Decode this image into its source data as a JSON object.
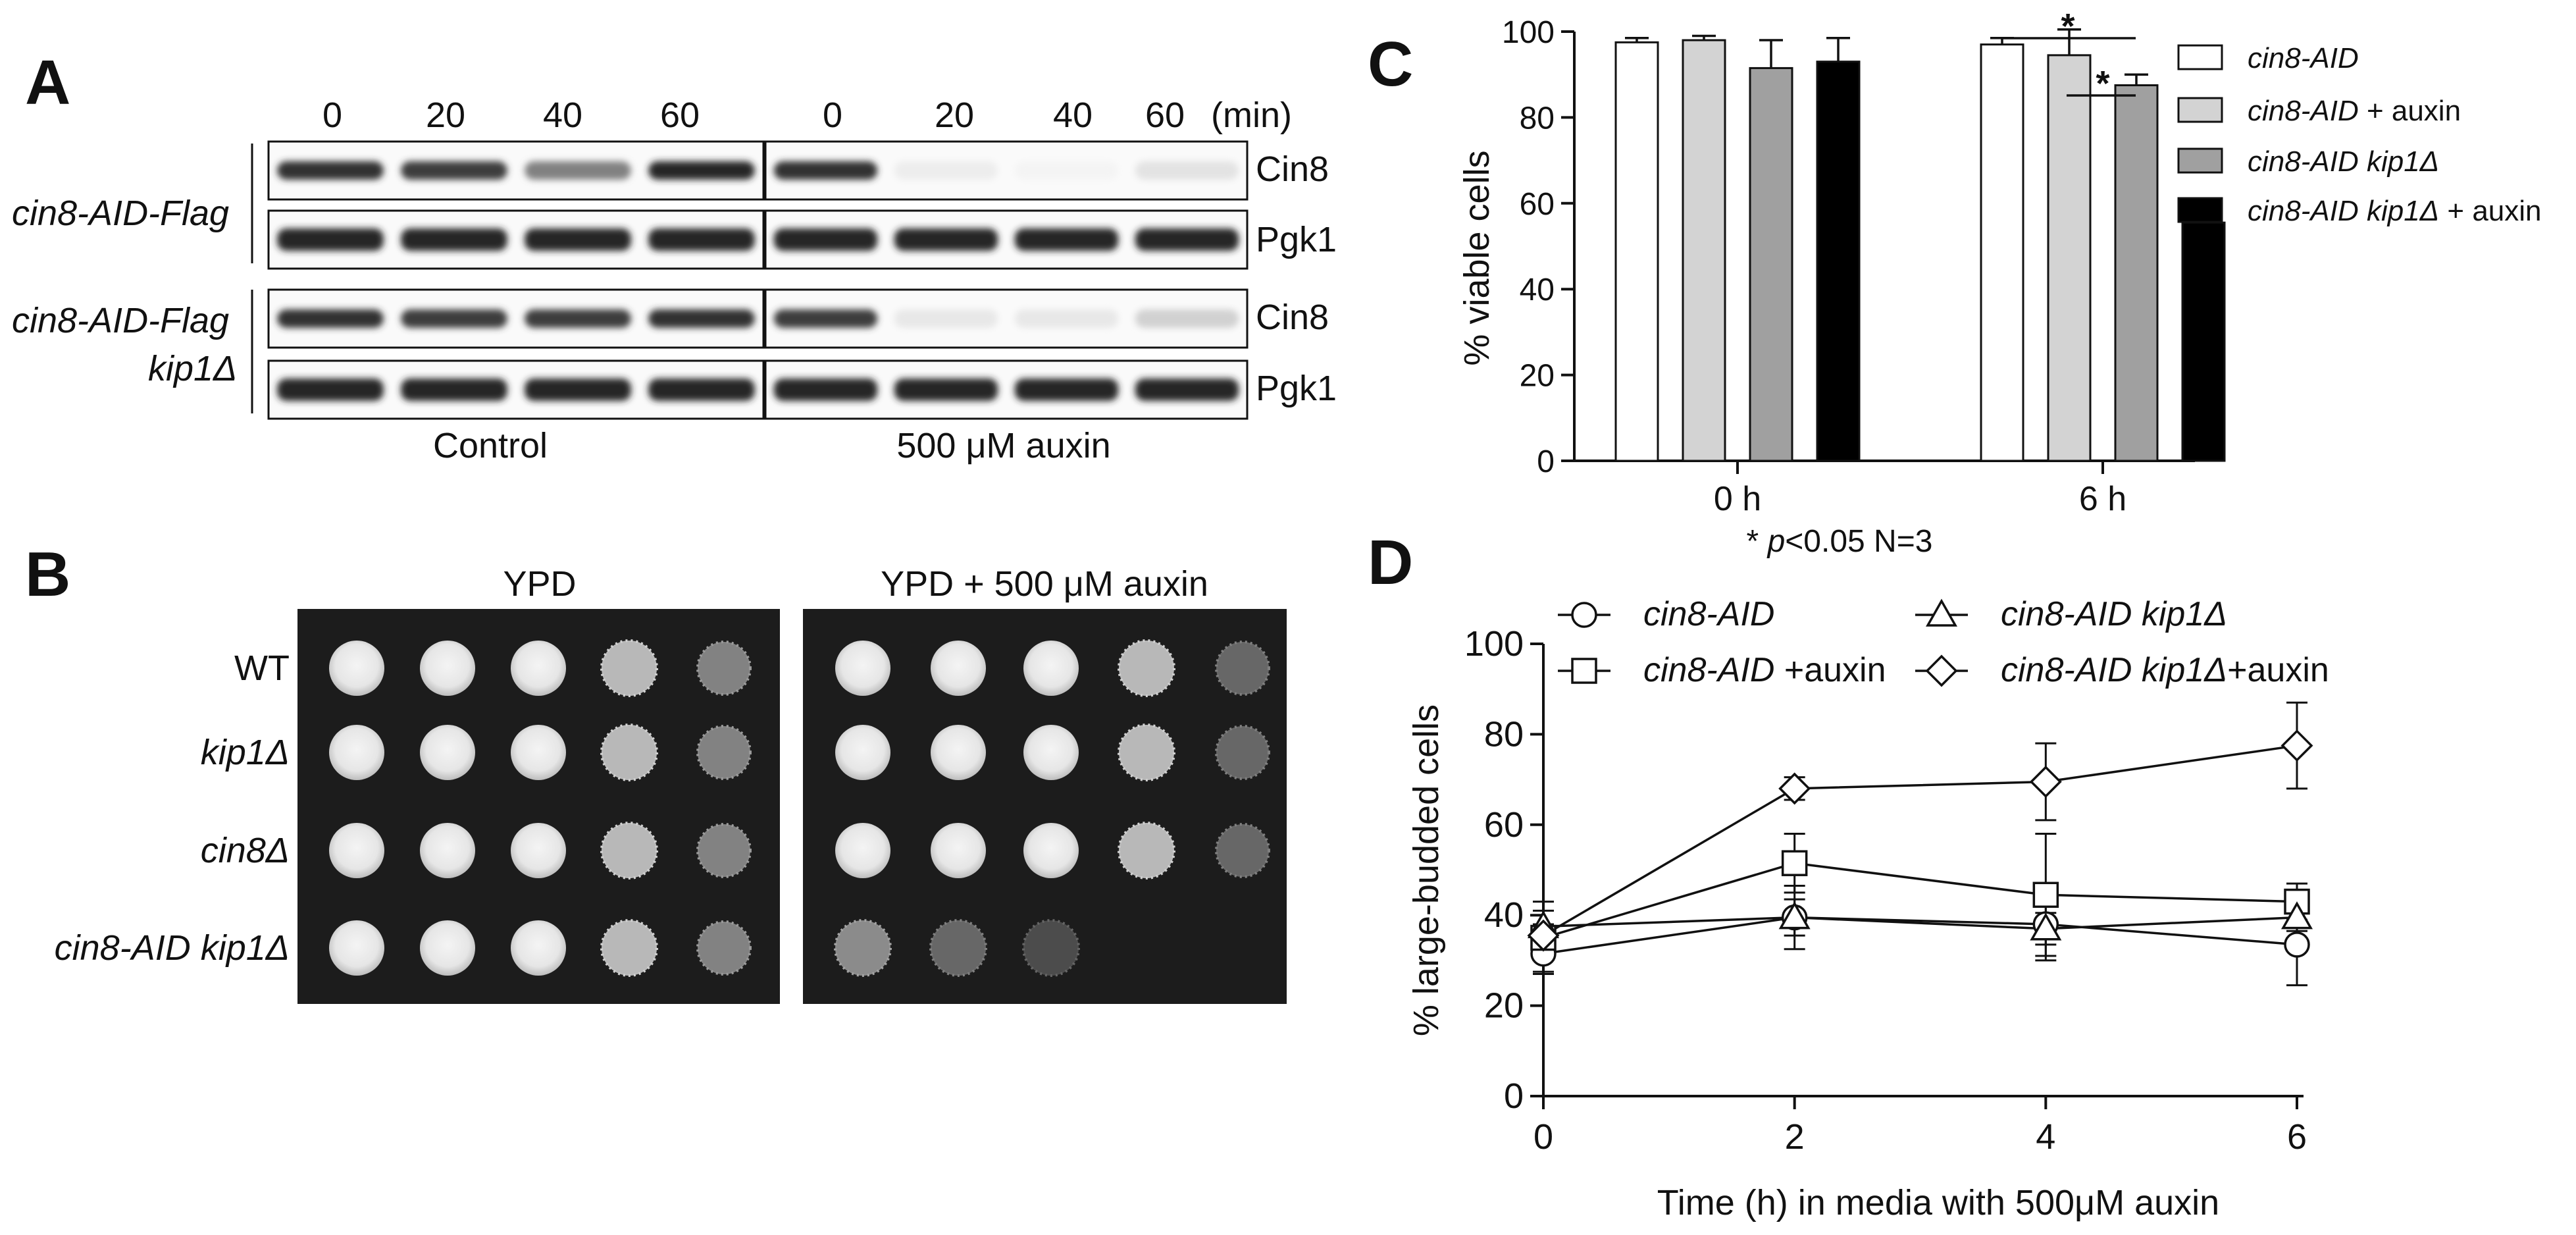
{
  "panel_a": {
    "label": "A",
    "times": [
      "0",
      "20",
      "40",
      "60"
    ],
    "time_unit": "(min)",
    "strains": [
      {
        "name": "cin8-AID-Flag"
      },
      {
        "name": "cin8-AID-Flag",
        "name2": "kip1Δ"
      }
    ],
    "bands": [
      "Cin8",
      "Pgk1"
    ],
    "conditions": [
      "Control",
      "500 μM auxin"
    ],
    "cin8_levels": {
      "control": [
        0.9,
        0.85,
        0.55,
        0.95
      ],
      "auxin": [
        0.9,
        0.08,
        0.05,
        0.12
      ]
    },
    "cin8_levels_kip1": {
      "control": [
        0.9,
        0.85,
        0.85,
        0.9
      ],
      "auxin": [
        0.85,
        0.1,
        0.1,
        0.2
      ]
    }
  },
  "panel_b": {
    "label": "B",
    "media": [
      "YPD",
      "YPD + 500 μM auxin"
    ],
    "rows": [
      {
        "name": "WT",
        "dilutions_ypd": [
          1,
          1,
          1,
          0.8,
          0.5
        ],
        "dilutions_auxin": [
          1,
          1,
          1,
          0.8,
          0.35
        ]
      },
      {
        "name": "kip1Δ",
        "dilutions_ypd": [
          1,
          1,
          1,
          0.8,
          0.5
        ],
        "dilutions_auxin": [
          1,
          1,
          1,
          0.8,
          0.35
        ]
      },
      {
        "name": "cin8Δ",
        "dilutions_ypd": [
          1,
          1,
          1,
          0.8,
          0.5
        ],
        "dilutions_auxin": [
          1,
          1,
          1,
          0.8,
          0.35
        ]
      },
      {
        "name": "cin8-AID kip1Δ",
        "dilutions_ypd": [
          1,
          1,
          1,
          0.8,
          0.5
        ],
        "dilutions_auxin": [
          0.55,
          0.35,
          0.2,
          0,
          0
        ]
      }
    ]
  },
  "panel_c": {
    "label": "C",
    "ylabel": "% viable cells",
    "note_star": "* ",
    "note_p": "p",
    "note_rest": "<0.05 N=3",
    "sig_marks": [
      "*",
      "*"
    ],
    "legend": [
      {
        "italic": "cin8-AID",
        "plain": ""
      },
      {
        "italic": "cin8-AID",
        "plain": " + auxin"
      },
      {
        "italic": "cin8-AID kip1Δ",
        "plain": ""
      },
      {
        "italic": "cin8-AID kip1Δ",
        "plain": " + auxin"
      }
    ]
  },
  "panel_d": {
    "label": "D",
    "ylabel": "% large-budded cells",
    "xlabel": "Time (h) in media with 500μM auxin",
    "legend": [
      {
        "italic": "cin8-AID",
        "plain": ""
      },
      {
        "italic": "cin8-AID",
        "plain": " +auxin"
      },
      {
        "italic": "cin8-AID kip1Δ",
        "plain": ""
      },
      {
        "italic": "cin8-AID kip1Δ",
        "plain": "+auxin"
      }
    ]
  },
  "chart_data": [
    {
      "type": "bar",
      "categories": [
        "0 h",
        "6 h"
      ],
      "ylim": [
        0,
        100
      ],
      "yticks": [
        0,
        20,
        40,
        60,
        80,
        100
      ],
      "series": [
        {
          "name": "cin8-AID",
          "values": [
            97.5,
            97
          ],
          "errors": [
            1,
            1.5
          ],
          "color": "#ffffff"
        },
        {
          "name": "cin8-AID + auxin",
          "values": [
            98,
            94.5
          ],
          "errors": [
            1,
            6
          ],
          "color": "#d3d3d3"
        },
        {
          "name": "cin8-AID kip1Δ",
          "values": [
            91.5,
            87.5
          ],
          "errors": [
            6.5,
            2.5
          ],
          "color": "#a0a0a0"
        },
        {
          "name": "cin8-AID kip1Δ + auxin",
          "values": [
            93,
            55.5
          ],
          "errors": [
            5.5,
            0.8
          ],
          "color": "#000000"
        }
      ],
      "legend_position": "right"
    },
    {
      "type": "line",
      "x": [
        0,
        2,
        4,
        6
      ],
      "xlim": [
        0,
        6
      ],
      "xticks": [
        0,
        2,
        4,
        6
      ],
      "ylim": [
        0,
        100
      ],
      "yticks": [
        0,
        20,
        40,
        60,
        80,
        100
      ],
      "series": [
        {
          "name": "cin8-AID",
          "marker": "circle",
          "values": [
            31.5,
            39.5,
            38,
            33.5
          ],
          "errors": [
            4,
            7,
            8,
            9
          ]
        },
        {
          "name": "cin8-AID +auxin",
          "marker": "square",
          "values": [
            35,
            51.5,
            44.5,
            43
          ],
          "errors": [
            8,
            6.5,
            13.5,
            4
          ]
        },
        {
          "name": "cin8-AID kip1Δ",
          "marker": "triangle",
          "values": [
            37.5,
            39.5,
            37,
            39.5
          ],
          "errors": [
            3.5,
            4,
            3.5,
            3
          ]
        },
        {
          "name": "cin8-AID kip1Δ+auxin",
          "marker": "diamond",
          "values": [
            35.5,
            68,
            69.5,
            77.5
          ],
          "errors": [
            2.5,
            2.5,
            8.5,
            9.5
          ]
        }
      ],
      "legend_position": "top"
    }
  ]
}
